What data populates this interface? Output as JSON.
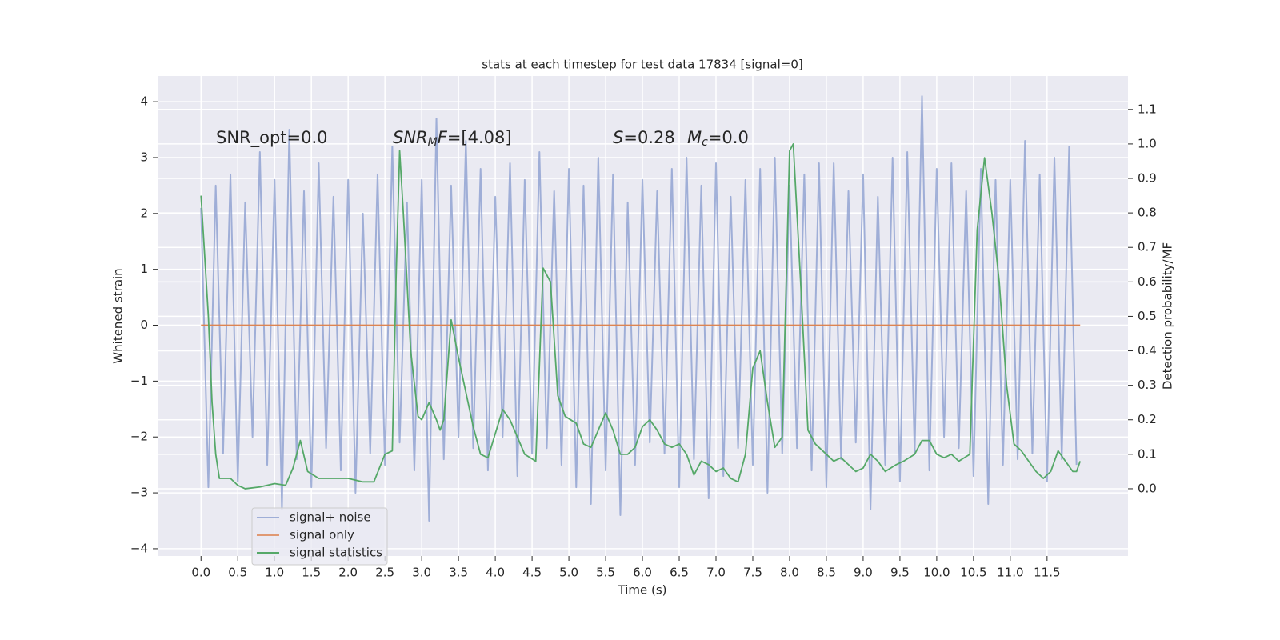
{
  "chart_data": {
    "type": "line",
    "title": "stats at each timestep for test data 17834 [signal=0]",
    "xlabel": "Time (s)",
    "ylabel": "Whitened strain",
    "y2label": "Detection probability/MF",
    "xlim": [
      -0.59,
      12.6
    ],
    "ylim": [
      -4.13,
      4.46
    ],
    "y2lim": [
      -0.195,
      1.197
    ],
    "xticks": [
      {
        "value": 0,
        "label": "0.0"
      },
      {
        "value": 0.5,
        "label": "0.5"
      },
      {
        "value": 1,
        "label": "1.0"
      },
      {
        "value": 1.5,
        "label": "1.5"
      },
      {
        "value": 2,
        "label": "2.0"
      },
      {
        "value": 2.5,
        "label": "2.5"
      },
      {
        "value": 3,
        "label": "3.0"
      },
      {
        "value": 3.5,
        "label": "3.5"
      },
      {
        "value": 4,
        "label": "4.0"
      },
      {
        "value": 4.5,
        "label": "4.5"
      },
      {
        "value": 5,
        "label": "5.0"
      },
      {
        "value": 5.5,
        "label": "5.5"
      },
      {
        "value": 6,
        "label": "6.0"
      },
      {
        "value": 6.5,
        "label": "6.5"
      },
      {
        "value": 7,
        "label": "7.0"
      },
      {
        "value": 7.5,
        "label": "7.5"
      },
      {
        "value": 8,
        "label": "8.0"
      },
      {
        "value": 8.5,
        "label": "8.5"
      },
      {
        "value": 9,
        "label": "9.0"
      },
      {
        "value": 9.5,
        "label": "9.5"
      },
      {
        "value": 10,
        "label": "10.0"
      },
      {
        "value": 10.5,
        "label": "10.5"
      },
      {
        "value": 11,
        "label": "11.0"
      },
      {
        "value": 11.5,
        "label": "11.5"
      }
    ],
    "yticks": [
      {
        "value": -4,
        "label": "−4"
      },
      {
        "value": -3,
        "label": "−3"
      },
      {
        "value": -2,
        "label": "−2"
      },
      {
        "value": -1,
        "label": "−1"
      },
      0,
      1,
      2,
      3,
      4
    ],
    "y2ticks": [
      {
        "value": 0,
        "label": "0.0"
      },
      {
        "value": 0.1,
        "label": "0.1"
      },
      {
        "value": 0.2,
        "label": "0.2"
      },
      {
        "value": 0.3,
        "label": "0.3"
      },
      {
        "value": 0.4,
        "label": "0.4"
      },
      {
        "value": 0.5,
        "label": "0.5"
      },
      {
        "value": 0.6,
        "label": "0.6"
      },
      {
        "value": 0.7,
        "label": "0.7"
      },
      {
        "value": 0.8,
        "label": "0.8"
      },
      {
        "value": 0.9,
        "label": "0.9"
      },
      {
        "value": 1.0,
        "label": "1.0"
      },
      {
        "value": 1.1,
        "label": "1.1"
      }
    ],
    "grid": true,
    "legend": "lower left",
    "annotations": [
      [
        {
          "t": "SNR_opt=0.0"
        }
      ],
      [
        {
          "t": "SNR",
          "i": true
        },
        {
          "t": "M",
          "i": true,
          "sub": true
        },
        {
          "t": "F",
          "i": true
        },
        {
          "t": "=[4.08]"
        }
      ],
      [
        {
          "t": "S",
          "i": true
        },
        {
          "t": "=0.28"
        }
      ],
      [
        {
          "t": "M",
          "i": true
        },
        {
          "t": "c",
          "i": true,
          "sub": true
        },
        {
          "t": "=0.0"
        }
      ]
    ],
    "series": [
      {
        "name": "signal+ noise",
        "color": "#8c9fcf",
        "x": [
          0,
          0.1,
          0.2,
          0.3,
          0.4,
          0.5,
          0.6,
          0.7,
          0.8,
          0.9,
          1,
          1.1,
          1.2,
          1.3,
          1.4,
          1.5,
          1.6,
          1.7,
          1.8,
          1.9,
          2,
          2.1,
          2.2,
          2.3,
          2.4,
          2.5,
          2.6,
          2.7,
          2.8,
          2.9,
          3,
          3.1,
          3.2,
          3.3,
          3.4,
          3.5,
          3.6,
          3.7,
          3.8,
          3.9,
          4,
          4.1,
          4.2,
          4.3,
          4.4,
          4.5,
          4.6,
          4.7,
          4.8,
          4.9,
          5,
          5.1,
          5.2,
          5.3,
          5.4,
          5.5,
          5.6,
          5.7,
          5.8,
          5.9,
          6,
          6.1,
          6.2,
          6.3,
          6.4,
          6.5,
          6.6,
          6.7,
          6.8,
          6.9,
          7,
          7.1,
          7.2,
          7.3,
          7.4,
          7.5,
          7.6,
          7.7,
          7.8,
          7.9,
          8,
          8.1,
          8.2,
          8.3,
          8.4,
          8.5,
          8.6,
          8.7,
          8.8,
          8.9,
          9,
          9.1,
          9.2,
          9.3,
          9.4,
          9.5,
          9.6,
          9.7,
          9.8,
          9.9,
          10,
          10.1,
          10.2,
          10.3,
          10.4,
          10.5,
          10.6,
          10.7,
          10.8,
          10.9,
          11,
          11.1,
          11.2,
          11.3,
          11.4,
          11.5,
          11.6,
          11.7,
          11.8,
          11.9
        ],
        "values": [
          2.1,
          -2.9,
          2.5,
          -2.3,
          2.7,
          -2.8,
          2.2,
          -2.0,
          3.1,
          -2.5,
          2.6,
          -3.3,
          3.5,
          -2.4,
          2.4,
          -2.9,
          2.9,
          -2.2,
          2.3,
          -2.6,
          2.6,
          -3.0,
          2.0,
          -2.3,
          2.7,
          -2.5,
          3.2,
          -2.1,
          2.2,
          -2.6,
          2.6,
          -3.5,
          3.7,
          -2.4,
          2.5,
          -2.0,
          3.3,
          -2.2,
          2.8,
          -2.6,
          2.3,
          -2.0,
          2.9,
          -2.7,
          2.6,
          -2.3,
          3.1,
          -2.2,
          2.4,
          -2.5,
          2.8,
          -2.9,
          2.5,
          -3.2,
          3.0,
          -2.6,
          2.7,
          -3.4,
          2.2,
          -2.5,
          2.6,
          -2.1,
          2.4,
          -2.3,
          2.8,
          -2.9,
          3.0,
          -2.4,
          2.5,
          -3.1,
          2.9,
          -2.7,
          2.3,
          -2.2,
          2.6,
          -2.5,
          2.8,
          -3.0,
          3.0,
          -2.3,
          2.5,
          -2.2,
          2.7,
          -2.6,
          2.9,
          -2.9,
          2.9,
          -2.4,
          2.4,
          -2.1,
          2.7,
          -3.3,
          2.3,
          -2.5,
          3.0,
          -2.8,
          3.1,
          -2.3,
          4.1,
          -2.6,
          2.8,
          -2.0,
          2.9,
          -2.2,
          2.4,
          -2.7,
          2.8,
          -3.2,
          2.6,
          -2.5,
          2.6,
          -2.4,
          3.3,
          -2.3,
          2.7,
          -2.8,
          3.0,
          -2.4,
          3.2,
          -2.5
        ]
      },
      {
        "name": "signal only",
        "color": "#dd8452",
        "x": [
          0,
          11.95
        ],
        "values": [
          0,
          0
        ]
      },
      {
        "name": "signal statistics",
        "color": "#55a868",
        "axis": "y2",
        "x": [
          0,
          0.1,
          0.15,
          0.2,
          0.25,
          0.3,
          0.35,
          0.4,
          0.5,
          0.6,
          0.8,
          1.0,
          1.15,
          1.25,
          1.35,
          1.45,
          1.6,
          1.8,
          2.0,
          2.2,
          2.35,
          2.5,
          2.6,
          2.65,
          2.7,
          2.75,
          2.85,
          2.95,
          3.0,
          3.1,
          3.2,
          3.25,
          3.3,
          3.4,
          3.5,
          3.6,
          3.7,
          3.8,
          3.9,
          4.0,
          4.1,
          4.2,
          4.3,
          4.4,
          4.55,
          4.65,
          4.75,
          4.85,
          4.95,
          5.1,
          5.2,
          5.3,
          5.4,
          5.5,
          5.6,
          5.7,
          5.8,
          5.9,
          6.0,
          6.1,
          6.2,
          6.3,
          6.4,
          6.5,
          6.6,
          6.7,
          6.8,
          6.9,
          7.0,
          7.1,
          7.2,
          7.3,
          7.4,
          7.5,
          7.6,
          7.7,
          7.8,
          7.9,
          8.0,
          8.05,
          8.15,
          8.25,
          8.35,
          8.5,
          8.6,
          8.7,
          8.8,
          8.9,
          9.0,
          9.1,
          9.2,
          9.3,
          9.45,
          9.55,
          9.7,
          9.8,
          9.9,
          10.0,
          10.1,
          10.2,
          10.3,
          10.45,
          10.55,
          10.65,
          10.75,
          10.85,
          10.95,
          11.05,
          11.15,
          11.25,
          11.35,
          11.45,
          11.55,
          11.65,
          11.75,
          11.85,
          11.9,
          11.95
        ],
        "values": [
          0.85,
          0.5,
          0.25,
          0.1,
          0.03,
          0.03,
          0.03,
          0.03,
          0.01,
          0.0,
          0.005,
          0.015,
          0.01,
          0.06,
          0.14,
          0.05,
          0.03,
          0.03,
          0.03,
          0.02,
          0.02,
          0.1,
          0.11,
          0.6,
          0.98,
          0.8,
          0.4,
          0.21,
          0.2,
          0.25,
          0.2,
          0.17,
          0.2,
          0.49,
          0.38,
          0.28,
          0.18,
          0.1,
          0.09,
          0.16,
          0.23,
          0.2,
          0.15,
          0.1,
          0.08,
          0.64,
          0.6,
          0.27,
          0.21,
          0.19,
          0.13,
          0.12,
          0.17,
          0.22,
          0.17,
          0.1,
          0.1,
          0.12,
          0.18,
          0.2,
          0.17,
          0.13,
          0.12,
          0.13,
          0.1,
          0.04,
          0.08,
          0.07,
          0.05,
          0.06,
          0.03,
          0.02,
          0.1,
          0.35,
          0.4,
          0.25,
          0.12,
          0.15,
          0.98,
          1.0,
          0.6,
          0.17,
          0.13,
          0.1,
          0.08,
          0.09,
          0.07,
          0.05,
          0.06,
          0.1,
          0.08,
          0.05,
          0.07,
          0.08,
          0.1,
          0.14,
          0.14,
          0.1,
          0.09,
          0.1,
          0.08,
          0.1,
          0.75,
          0.96,
          0.8,
          0.6,
          0.3,
          0.13,
          0.11,
          0.08,
          0.05,
          0.03,
          0.05,
          0.11,
          0.08,
          0.05,
          0.05,
          0.08
        ]
      }
    ]
  }
}
